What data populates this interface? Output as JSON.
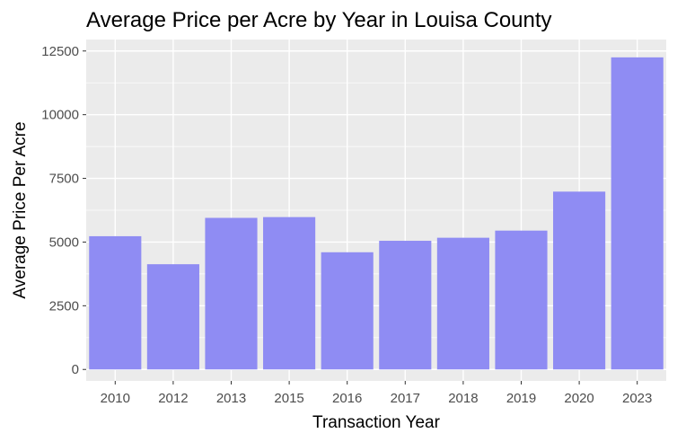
{
  "chart_data": {
    "type": "bar",
    "title": "Average Price per Acre by Year in Louisa County",
    "xlabel": "Transaction Year",
    "ylabel": "Average Price Per Acre",
    "categories": [
      "2010",
      "2012",
      "2013",
      "2015",
      "2016",
      "2017",
      "2018",
      "2019",
      "2020",
      "2023"
    ],
    "values": [
      5230,
      4130,
      5950,
      5980,
      4600,
      5050,
      5170,
      5450,
      6980,
      12250
    ],
    "yticks": [
      0,
      2500,
      5000,
      7500,
      10000,
      12500
    ],
    "ytick_labels": [
      "0",
      "2500",
      "5000",
      "7500",
      "10000",
      "12500"
    ],
    "ylim": [
      -450,
      12950
    ],
    "grid": true,
    "colors": {
      "bar": "#8f8cf3",
      "panel": "#ebebeb",
      "gridline": "#ffffff",
      "tick_text": "#4d4d4d"
    }
  }
}
